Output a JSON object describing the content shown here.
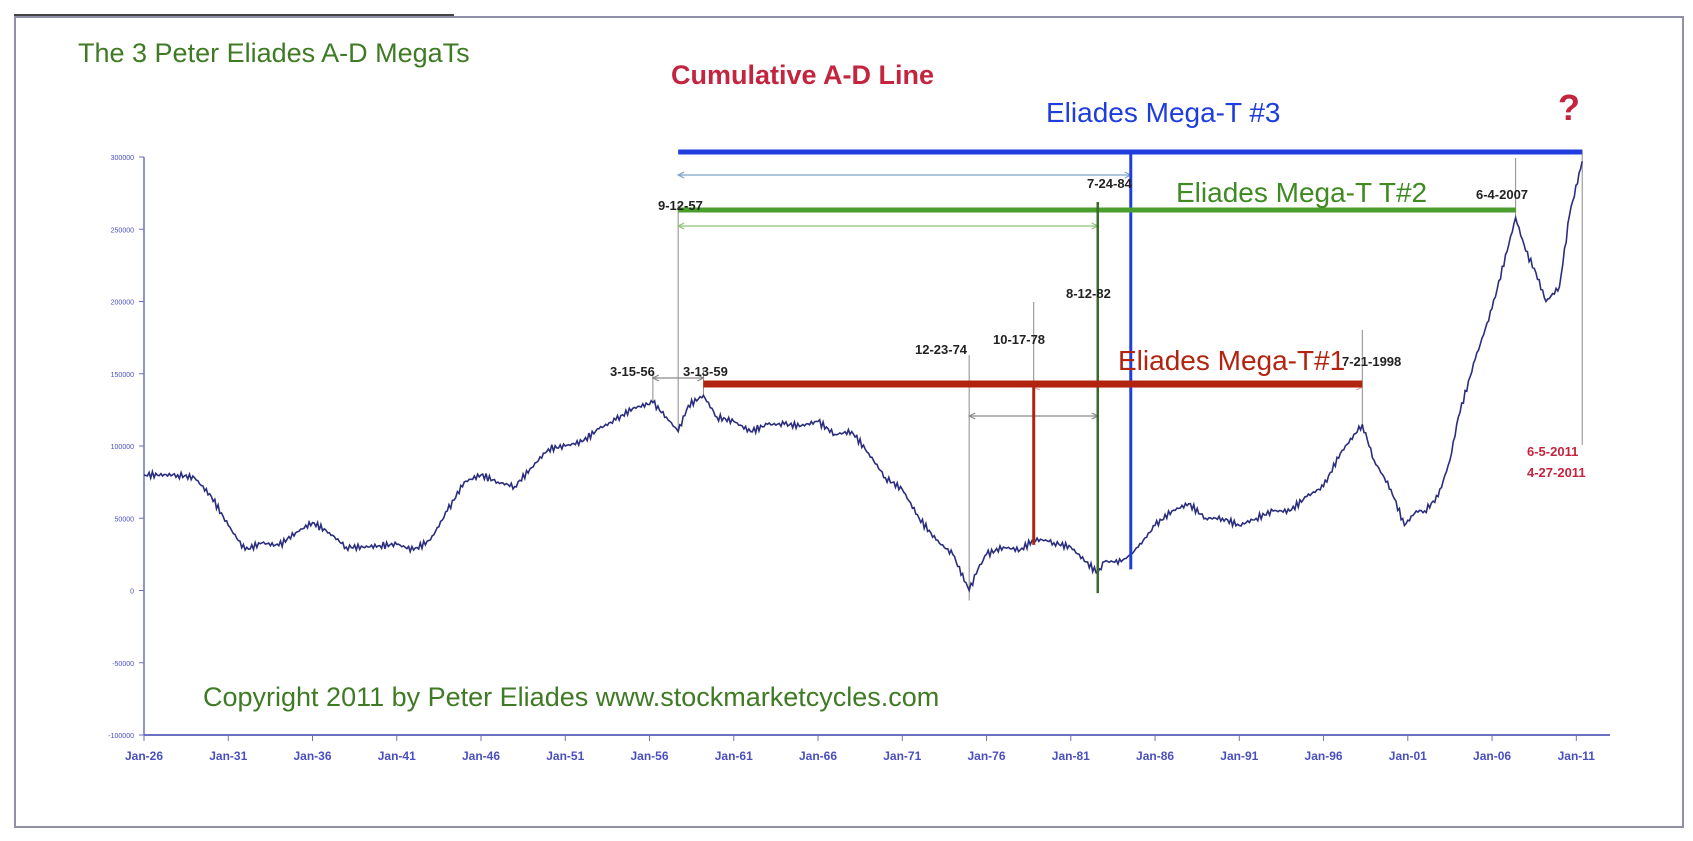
{
  "chart_data": {
    "type": "line",
    "title": "Cumulative A-D Line",
    "header_text": "The 3 Peter Eliades A-D MegaTs",
    "copyright": "Copyright 2011 by Peter Eliades www.stockmarketcycles.com",
    "question_mark": "?",
    "xlabel": "",
    "ylabel": "",
    "x_tick_labels": [
      "Jan-26",
      "Jan-31",
      "Jan-36",
      "Jan-41",
      "Jan-46",
      "Jan-51",
      "Jan-56",
      "Jan-61",
      "Jan-66",
      "Jan-71",
      "Jan-76",
      "Jan-81",
      "Jan-86",
      "Jan-91",
      "Jan-96",
      "Jan-01",
      "Jan-06",
      "Jan-11"
    ],
    "x_tick_years": [
      1926,
      1931,
      1936,
      1941,
      1946,
      1951,
      1956,
      1961,
      1966,
      1971,
      1976,
      1981,
      1986,
      1991,
      1996,
      2001,
      2006,
      2011
    ],
    "y_ticks": [
      -100000,
      -50000,
      0,
      50000,
      100000,
      150000,
      200000,
      250000,
      300000
    ],
    "y_tick_labels": [
      "-100000",
      "-50000",
      "0",
      "50000",
      "100000",
      "150000",
      "200000",
      "250000",
      "300000"
    ],
    "xlim": [
      1926,
      2013
    ],
    "ylim": [
      -100000,
      300000
    ],
    "grid": false,
    "legend": "none",
    "series": [
      {
        "color": "#2b2e7e",
        "x": [
          1926,
          1928,
          1929,
          1930,
          1931,
          1932,
          1933,
          1934,
          1935,
          1936,
          1937,
          1938,
          1939,
          1940,
          1941,
          1942,
          1943,
          1944,
          1945,
          1946,
          1947,
          1948,
          1949,
          1950,
          1951,
          1952,
          1953,
          1954,
          1955,
          1956.2,
          1957,
          1957.7,
          1958.3,
          1959.2,
          1960,
          1961,
          1962,
          1963,
          1964,
          1965,
          1966,
          1967,
          1968,
          1969,
          1970,
          1971,
          1972,
          1973,
          1974,
          1974.97,
          1975.5,
          1976,
          1977,
          1978,
          1978.8,
          1979.5,
          1980,
          1981,
          1982.6,
          1983,
          1984,
          1984.56,
          1985,
          1986,
          1987,
          1988,
          1989,
          1990,
          1991,
          1992,
          1993,
          1994,
          1995,
          1996,
          1997,
          1998.3,
          1999,
          2000,
          2000.8,
          2001.5,
          2002,
          2002.8,
          2003.5,
          2004,
          2005,
          2006,
          2007.4,
          2008,
          2008.6,
          2009.2,
          2010,
          2010.6,
          2011.35
        ],
        "y": [
          80000,
          80000,
          78000,
          65000,
          45000,
          28000,
          33000,
          31000,
          40000,
          47000,
          40000,
          30000,
          30000,
          31000,
          32000,
          28000,
          35000,
          55000,
          75000,
          80000,
          75000,
          72000,
          85000,
          98000,
          100000,
          103000,
          112000,
          118000,
          126000,
          130000,
          120000,
          110000,
          128000,
          135000,
          120000,
          117000,
          110000,
          115000,
          115000,
          114000,
          117000,
          108000,
          110000,
          95000,
          78000,
          70000,
          50000,
          35000,
          25000,
          0,
          15000,
          25000,
          30000,
          28000,
          35000,
          35000,
          33000,
          30000,
          12000,
          20000,
          20000,
          25000,
          30000,
          45000,
          55000,
          60000,
          50000,
          50000,
          45000,
          50000,
          55000,
          55000,
          65000,
          72000,
          95000,
          115000,
          90000,
          70000,
          45000,
          55000,
          55000,
          65000,
          90000,
          120000,
          160000,
          195000,
          258000,
          235000,
          220000,
          200000,
          210000,
          260000,
          297000
        ]
      }
    ],
    "annotations": [
      {
        "text": "3-15-56",
        "x": 1956.2
      },
      {
        "text": "3-13-59",
        "x": 1959.2
      },
      {
        "text": "9-12-57",
        "x": 1957.7
      },
      {
        "text": "12-23-74",
        "x": 1974.97
      },
      {
        "text": "10-17-78",
        "x": 1978.8
      },
      {
        "text": "8-12-82",
        "x": 1982.6
      },
      {
        "text": "7-24-84",
        "x": 1984.56
      },
      {
        "text": "7-21-1998",
        "x": 1998.3
      },
      {
        "text": "6-4-2007",
        "x": 2007.4
      },
      {
        "text": "6-5-2011",
        "x": 2011.35
      },
      {
        "text": "4-27-2011",
        "x": 2011.35
      }
    ],
    "megats": [
      {
        "label": "Eliades Mega-T #3",
        "color": "#1f3ddd",
        "x_start": 1957.7,
        "x_end": 2011.35,
        "peak_x": 1984.56
      },
      {
        "label": "Eliades Mega-T T#2",
        "color": "#4a9f2c",
        "x_start": 1957.7,
        "x_end": 2007.4,
        "peak_x": 1982.6
      },
      {
        "label": "Eliades Mega-T#1",
        "color": "#b22410",
        "x_start": 1959.2,
        "x_end": 1998.3,
        "peak_x": 1978.8
      }
    ],
    "colors": {
      "header": "#3f7a24",
      "title": "#c3253f",
      "copyright": "#3f7a24",
      "question": "#c3253f",
      "axis": "#6d70c0",
      "tick_label": "#4a4fbf",
      "dates_red": "#c3253f"
    }
  }
}
